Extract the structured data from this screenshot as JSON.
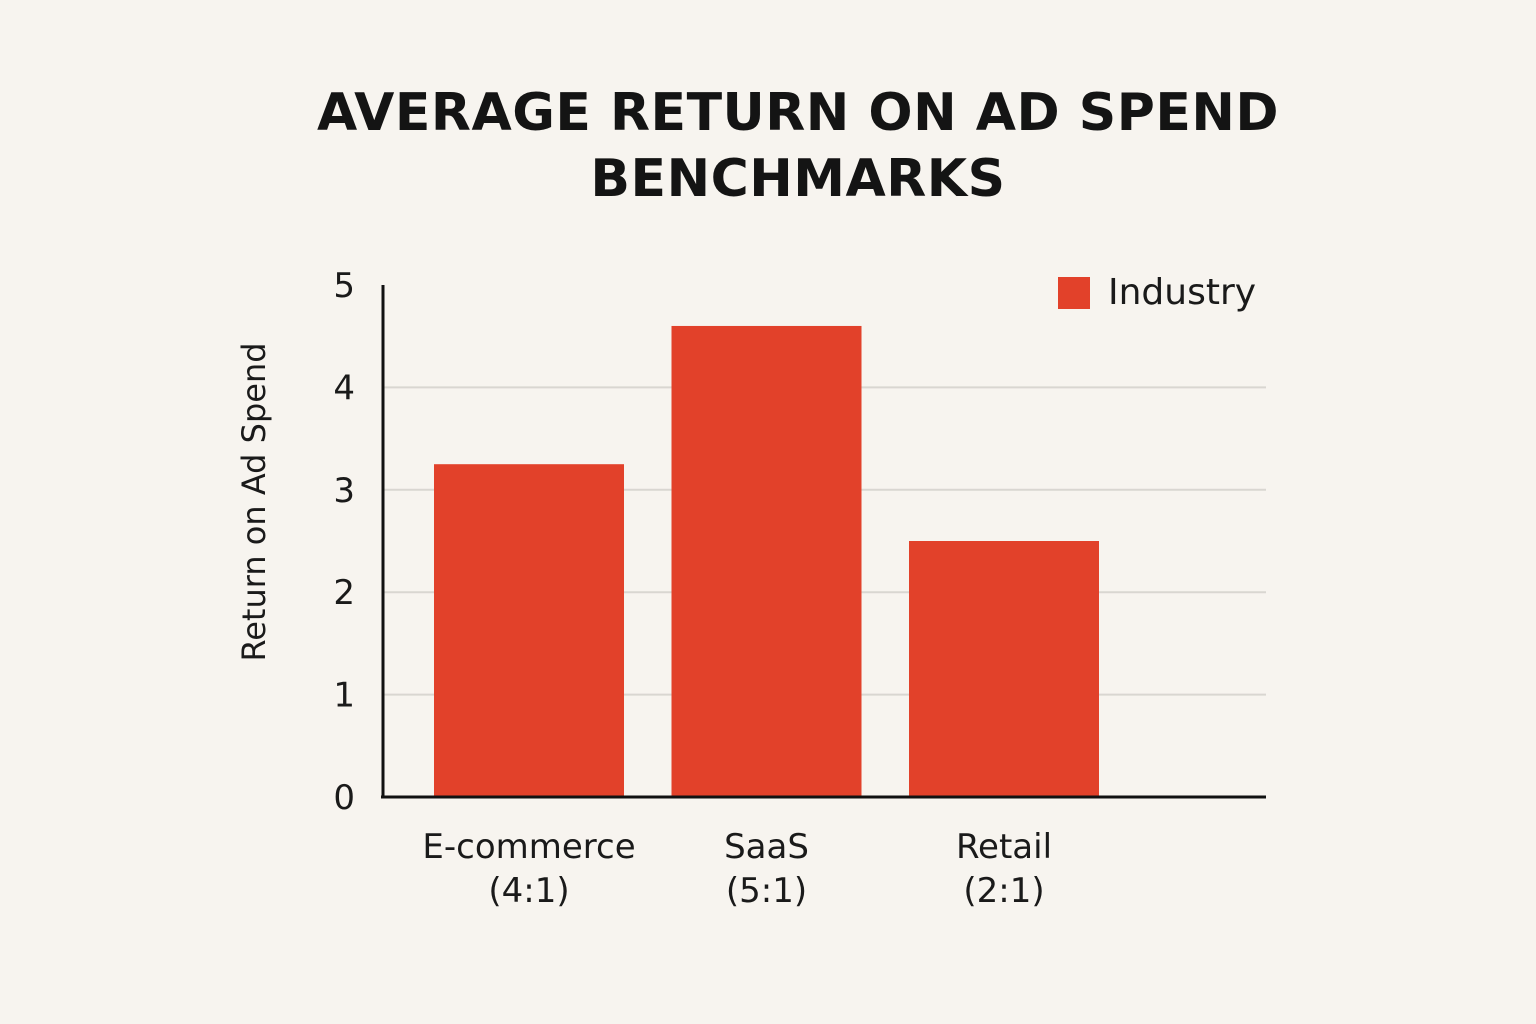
{
  "colors": {
    "background": "#f7f4ef",
    "bar": "#e2412a",
    "axis": "#111111",
    "grid": "#d9d6d1",
    "text": "#1a1a1a"
  },
  "chart_data": {
    "type": "bar",
    "title": "AVERAGE RETURN ON AD SPEND BENCHMARKS",
    "xlabel": "",
    "ylabel": "Return on Ad Spend",
    "ylim": [
      0,
      5
    ],
    "yticks": [
      "0",
      "1",
      "2",
      "3",
      "4",
      "5"
    ],
    "grid": true,
    "legend_position": "top-right",
    "categories": [
      {
        "line1": "E-commerce",
        "line2": "(4:1)"
      },
      {
        "line1": "SaaS",
        "line2": "(5:1)"
      },
      {
        "line1": "Retail",
        "line2": "(2:1)"
      }
    ],
    "series": [
      {
        "name": "Industry",
        "values": [
          3.25,
          4.6,
          2.5
        ]
      }
    ]
  }
}
